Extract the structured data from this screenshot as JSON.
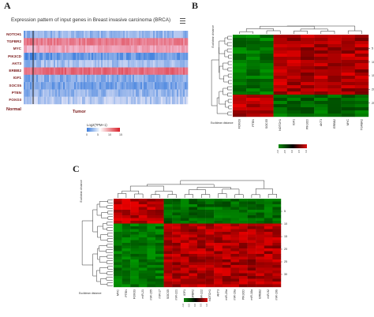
{
  "panels": {
    "a": {
      "letter": "A"
    },
    "b": {
      "letter": "B"
    },
    "c": {
      "letter": "C"
    }
  },
  "chart_data": [
    {
      "type": "heatmap",
      "panel": "A",
      "title": "Expression pattern of input genes in Breast invasive carcinoma (BRCA)",
      "rows": [
        "NOTCH1",
        "TGFBR2",
        "MYC",
        "PIK3CD",
        "AKT3",
        "ERBB2",
        "IGF1",
        "SOCS5",
        "PTEN",
        "FOXO3"
      ],
      "groups": [
        "Normal",
        "Tumor"
      ],
      "row_levels": [
        3,
        10,
        8,
        1.5,
        3.5,
        11,
        2.5,
        2,
        3,
        4
      ],
      "legend": {
        "title": "Log2(TPM+1)",
        "ticks": [
          "0",
          "5",
          "10",
          "15"
        ],
        "colors": [
          "#3c7ddc",
          "#ffffff",
          "#d8202a"
        ]
      },
      "menu_icon": "hamburger-menu-icon"
    },
    {
      "type": "heatmap",
      "panel": "B",
      "row_dendrogram_label": "Euclidean distance",
      "col_dendrogram_label": "Euclidean distance",
      "columns": [
        "FOXO3",
        "PTEN",
        "SOCS5",
        "NOTCH1",
        "IGF1",
        "PIK3CD",
        "AKT3",
        "ERBB2",
        "MYC",
        "TGFBR2"
      ],
      "row_ticks": [
        "5",
        "10",
        "15",
        "20",
        "25"
      ],
      "legend_ticks": [
        "-1.0",
        "-0.5",
        "0.0",
        "0.5",
        "1.0"
      ],
      "colors": [
        "#0a8a0a",
        "#000000",
        "#e01010"
      ]
    },
    {
      "type": "heatmap",
      "panel": "C",
      "row_dendrogram_label": "Euclidean distance",
      "col_dendrogram_label": "Euclidean distance",
      "columns": [
        "MYC",
        "PTEN",
        "FOXO3",
        "miR-21",
        "miR-155",
        "miR-17",
        "SOCS5",
        "miR-221",
        "IGF1",
        "TGFBR2",
        "miR-222",
        "NOTCH1",
        "AKT3",
        "miR-20a",
        "miR-19a",
        "PIK3CD",
        "miR-18a",
        "ERBB2",
        "miR-92",
        "miR-19b"
      ],
      "row_ticks": [
        "5",
        "10",
        "15",
        "20",
        "25",
        "30"
      ],
      "legend_ticks": [
        "-1.0",
        "-0.5",
        "0.0",
        "0.5",
        "1.0"
      ],
      "colors": [
        "#0a8a0a",
        "#000000",
        "#e01010"
      ]
    }
  ]
}
